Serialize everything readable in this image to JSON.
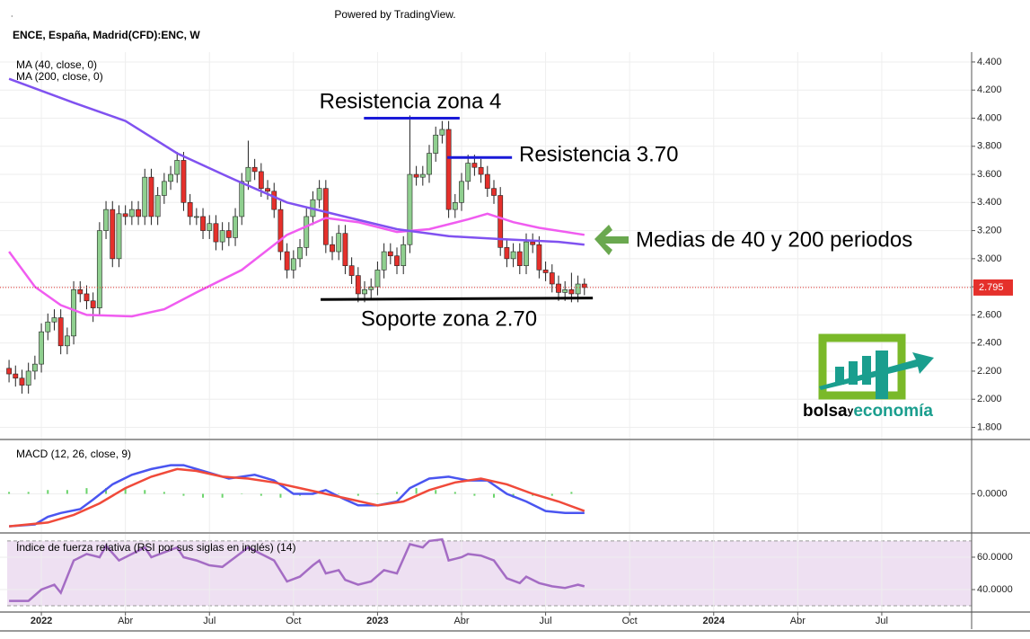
{
  "header": {
    "dot": ".",
    "attribution": "Powered by TradingView.",
    "title": "ENCE, España, Madrid(CFD):ENC, W"
  },
  "logo": {
    "part1": "bolsa",
    "part2": "y",
    "part3": "economía"
  },
  "chart_data": [
    {
      "type": "candlestick",
      "xlim": [
        -1.4,
        148.9
      ],
      "ylim": [
        1.72,
        4.47
      ],
      "yticks": [
        {
          "value": 1.8,
          "label": "1.800"
        },
        {
          "value": 2.0,
          "label": "2.000"
        },
        {
          "value": 2.2,
          "label": "2.200"
        },
        {
          "value": 2.4,
          "label": "2.400"
        },
        {
          "value": 2.6,
          "label": "2.600"
        },
        {
          "value": 2.8,
          "label": "2.800"
        },
        {
          "value": 3.0,
          "label": "3.000"
        },
        {
          "value": 3.2,
          "label": "3.200"
        },
        {
          "value": 3.4,
          "label": "3.400"
        },
        {
          "value": 3.6,
          "label": "3.600"
        },
        {
          "value": 3.8,
          "label": "3.800"
        },
        {
          "value": 4.0,
          "label": "4.000"
        },
        {
          "value": 4.2,
          "label": "4.200"
        },
        {
          "value": 4.4,
          "label": "4.400"
        }
      ],
      "up_color": "#8fcf8f",
      "down_color": "#e5302b",
      "last_color": "#e5302b",
      "x": [
        0,
        1,
        2,
        3,
        4,
        5,
        6,
        7,
        8,
        9,
        10,
        11,
        12,
        13,
        14,
        15,
        16,
        17,
        18,
        19,
        20,
        21,
        22,
        23,
        24,
        25,
        26,
        27,
        28,
        29,
        30,
        31,
        32,
        33,
        34,
        35,
        36,
        37,
        38,
        39,
        40,
        41,
        42,
        43,
        44,
        45,
        46,
        47,
        48,
        49,
        50,
        51,
        52,
        53,
        54,
        55,
        56,
        57,
        58,
        59,
        60,
        61,
        62,
        63,
        64,
        65,
        66,
        67,
        68,
        69,
        70,
        71,
        72,
        73,
        74,
        75,
        76,
        77,
        78,
        79,
        80,
        81,
        82,
        83,
        84,
        85,
        86,
        87,
        88,
        89
      ],
      "open": [
        2.22,
        2.18,
        2.15,
        2.1,
        2.2,
        2.25,
        2.48,
        2.55,
        2.58,
        2.38,
        2.45,
        2.78,
        2.75,
        2.7,
        2.65,
        3.2,
        3.35,
        3.0,
        3.32,
        3.3,
        3.35,
        3.3,
        3.58,
        3.3,
        3.45,
        3.55,
        3.6,
        3.7,
        3.4,
        3.3,
        3.3,
        3.2,
        3.25,
        3.12,
        3.2,
        3.15,
        3.3,
        3.55,
        3.65,
        3.62,
        3.5,
        3.48,
        3.35,
        3.05,
        2.92,
        3.0,
        3.08,
        3.3,
        3.42,
        3.5,
        3.1,
        3.05,
        3.18,
        2.95,
        2.88,
        2.75,
        2.78,
        2.8,
        2.92,
        3.05,
        3.02,
        2.95,
        3.1,
        3.6,
        3.58,
        3.6,
        3.75,
        3.88,
        3.92,
        3.35,
        3.4,
        3.55,
        3.68,
        3.65,
        3.6,
        3.5,
        3.45,
        3.08,
        3.0,
        3.05,
        2.95,
        3.12,
        3.1,
        2.92,
        2.9,
        2.82,
        2.76,
        2.78,
        2.75,
        2.82
      ],
      "high": [
        2.28,
        2.24,
        2.21,
        2.26,
        2.31,
        2.54,
        2.61,
        2.64,
        2.64,
        2.51,
        2.84,
        2.84,
        2.81,
        2.76,
        3.26,
        3.41,
        3.41,
        3.38,
        3.38,
        3.41,
        3.41,
        3.64,
        3.64,
        3.51,
        3.61,
        3.66,
        3.76,
        3.76,
        3.46,
        3.36,
        3.36,
        3.31,
        3.31,
        3.26,
        3.26,
        3.36,
        3.61,
        3.84,
        3.71,
        3.68,
        3.56,
        3.54,
        3.41,
        3.11,
        3.06,
        3.14,
        3.36,
        3.48,
        3.56,
        3.56,
        3.16,
        3.24,
        3.24,
        3.01,
        2.94,
        2.84,
        2.86,
        2.98,
        3.11,
        3.11,
        3.08,
        3.16,
        4.02,
        3.66,
        3.66,
        3.81,
        3.94,
        3.98,
        3.98,
        3.46,
        3.61,
        3.74,
        3.74,
        3.71,
        3.66,
        3.56,
        3.51,
        3.14,
        3.11,
        3.11,
        3.18,
        3.18,
        3.16,
        2.98,
        2.96,
        2.88,
        2.84,
        2.9,
        2.88,
        2.86
      ],
      "low": [
        2.12,
        2.09,
        2.04,
        2.04,
        2.14,
        2.19,
        2.42,
        2.49,
        2.32,
        2.32,
        2.39,
        2.69,
        2.64,
        2.55,
        2.59,
        3.14,
        2.94,
        2.94,
        3.24,
        3.24,
        3.24,
        3.24,
        3.24,
        3.24,
        3.39,
        3.49,
        3.54,
        3.34,
        3.24,
        3.24,
        3.14,
        3.14,
        3.06,
        3.06,
        3.09,
        3.09,
        3.24,
        3.49,
        3.56,
        3.44,
        3.42,
        3.29,
        2.99,
        2.86,
        2.86,
        2.94,
        3.02,
        3.24,
        3.36,
        3.04,
        2.99,
        2.99,
        2.89,
        2.82,
        2.69,
        2.69,
        2.72,
        2.74,
        2.86,
        2.96,
        2.89,
        2.89,
        3.04,
        3.52,
        3.52,
        3.54,
        3.69,
        3.82,
        3.29,
        3.29,
        3.34,
        3.49,
        3.59,
        3.54,
        3.44,
        3.39,
        3.02,
        2.94,
        2.94,
        2.89,
        2.89,
        3.04,
        2.86,
        2.84,
        2.76,
        2.7,
        2.7,
        2.69,
        2.69,
        2.74
      ],
      "close": [
        2.18,
        2.15,
        2.1,
        2.2,
        2.25,
        2.48,
        2.55,
        2.58,
        2.38,
        2.45,
        2.78,
        2.75,
        2.7,
        2.65,
        3.2,
        3.35,
        3.0,
        3.32,
        3.3,
        3.35,
        3.3,
        3.58,
        3.3,
        3.45,
        3.55,
        3.6,
        3.7,
        3.4,
        3.3,
        3.3,
        3.2,
        3.25,
        3.12,
        3.2,
        3.15,
        3.3,
        3.55,
        3.65,
        3.62,
        3.5,
        3.48,
        3.35,
        3.05,
        2.92,
        3.0,
        3.08,
        3.3,
        3.42,
        3.5,
        3.1,
        3.05,
        3.18,
        2.95,
        2.88,
        2.75,
        2.78,
        2.8,
        2.92,
        3.05,
        3.02,
        2.95,
        3.1,
        3.6,
        3.58,
        3.6,
        3.75,
        3.88,
        3.92,
        3.35,
        3.4,
        3.55,
        3.68,
        3.65,
        3.6,
        3.5,
        3.45,
        3.08,
        3.0,
        3.05,
        2.95,
        3.12,
        3.1,
        2.92,
        2.9,
        2.82,
        2.76,
        2.78,
        2.75,
        2.82,
        2.795
      ],
      "series": [
        {
          "name": "MA (40, close, 0)",
          "color": "#f05cf0",
          "x": [
            0,
            4,
            8,
            12,
            19,
            24,
            29,
            36,
            43,
            49,
            54,
            60,
            65,
            71,
            74,
            78,
            82,
            89
          ],
          "values": [
            3.05,
            2.8,
            2.67,
            2.6,
            2.59,
            2.64,
            2.76,
            2.92,
            3.17,
            3.29,
            3.26,
            3.19,
            3.21,
            3.28,
            3.32,
            3.26,
            3.22,
            3.17
          ]
        },
        {
          "name": "MA (200, close, 0)",
          "color": "#8052f0",
          "x": [
            0,
            10,
            18,
            26,
            35,
            43,
            51,
            60,
            68,
            76,
            85,
            89
          ],
          "values": [
            4.28,
            4.11,
            3.98,
            3.75,
            3.56,
            3.4,
            3.31,
            3.21,
            3.16,
            3.14,
            3.12,
            3.1
          ]
        }
      ],
      "annotations": [
        {
          "text": "Resistencia zona 4",
          "color": "#1a1ad8",
          "x": [
            54.9,
            69.7
          ],
          "y": [
            4.0,
            4.0
          ]
        },
        {
          "text": "Resistencia 3.70",
          "color": "#1a1ad8",
          "x": [
            67.8,
            77.8
          ],
          "y": [
            3.72,
            3.72
          ]
        },
        {
          "text": "Soporte zona 2.70",
          "color": "#000000",
          "x": [
            48.2,
            90.3
          ],
          "y": [
            2.71,
            2.72
          ]
        },
        {
          "text": "Medias de 40 y 200 periodos",
          "color": "#6a7a88"
        }
      ]
    },
    {
      "type": "line",
      "title": "MACD (12, 26, close, 9)",
      "xlim": [
        -1.4,
        148.9
      ],
      "ylim": [
        -0.2,
        0.28
      ],
      "yticks": [
        {
          "value": 0,
          "label": "0.0000"
        }
      ],
      "series": [
        {
          "color": "#4a55f0",
          "x": [
            0,
            4,
            6,
            8,
            11,
            13,
            16,
            19,
            22,
            25,
            27,
            30,
            34,
            38,
            41,
            44,
            47,
            49,
            52,
            54,
            57,
            60,
            62,
            65,
            68,
            71,
            74,
            77,
            80,
            83,
            86,
            89
          ],
          "values": [
            -0.17,
            -0.16,
            -0.12,
            -0.1,
            -0.08,
            -0.03,
            0.05,
            0.1,
            0.13,
            0.15,
            0.15,
            0.12,
            0.08,
            0.1,
            0.07,
            0.0,
            0.0,
            0.02,
            -0.03,
            -0.06,
            -0.06,
            -0.04,
            0.03,
            0.08,
            0.09,
            0.07,
            0.07,
            0.0,
            -0.04,
            -0.09,
            -0.1,
            -0.1
          ]
        },
        {
          "color": "#f04a3a",
          "x": [
            0,
            6,
            10,
            14,
            18,
            22,
            26,
            29,
            33,
            37,
            41,
            45,
            49,
            53,
            57,
            61,
            65,
            69,
            73,
            77,
            81,
            85,
            89
          ],
          "values": [
            -0.17,
            -0.15,
            -0.11,
            -0.05,
            0.03,
            0.09,
            0.13,
            0.12,
            0.09,
            0.08,
            0.06,
            0.03,
            0.0,
            -0.03,
            -0.06,
            -0.04,
            0.02,
            0.06,
            0.08,
            0.05,
            0.0,
            -0.04,
            -0.09
          ]
        }
      ],
      "histogram": {
        "color": "#6ad46a",
        "x": [
          0,
          3,
          6,
          9,
          12,
          15,
          18,
          21,
          24,
          27,
          30,
          33,
          36,
          39,
          42,
          45,
          48,
          51,
          54,
          57,
          60,
          63,
          66,
          69,
          72,
          75,
          78,
          81,
          84,
          87
        ],
        "values": [
          0.01,
          0.01,
          0.02,
          0.02,
          0.03,
          0.03,
          0.03,
          0.02,
          0.01,
          -0.01,
          -0.02,
          -0.02,
          0.0,
          -0.01,
          -0.02,
          -0.01,
          0.01,
          0.0,
          -0.01,
          0.0,
          0.01,
          0.03,
          0.02,
          0.01,
          -0.01,
          -0.02,
          -0.02,
          -0.01,
          -0.01,
          0.01
        ]
      }
    },
    {
      "type": "line",
      "title": "Índice de fuerza relativa (RSI por sus siglas en inglés) (14)",
      "xlim": [
        -1.4,
        148.9
      ],
      "ylim": [
        26.7,
        74.4
      ],
      "yticks": [
        {
          "value": 40,
          "label": "40.0000"
        },
        {
          "value": 60,
          "label": "60.0000"
        }
      ],
      "band": [
        30,
        70
      ],
      "band_color": "#eee0f2",
      "xticks": [
        {
          "value": 5,
          "label": "2022"
        },
        {
          "value": 18,
          "label": "Abr"
        },
        {
          "value": 31,
          "label": "Jul"
        },
        {
          "value": 44,
          "label": "Oct"
        },
        {
          "value": 57,
          "label": "2023"
        },
        {
          "value": 70,
          "label": "Abr"
        },
        {
          "value": 83,
          "label": "Jul"
        },
        {
          "value": 96,
          "label": "Oct"
        },
        {
          "value": 109,
          "label": "2024"
        },
        {
          "value": 122,
          "label": "Abr"
        },
        {
          "value": 135,
          "label": "Jul"
        }
      ],
      "series": [
        {
          "color": "#a46cc4",
          "x": [
            0,
            3,
            5,
            7,
            8,
            10,
            12,
            14,
            15,
            17,
            19,
            21,
            22,
            24,
            26,
            27,
            29,
            31,
            33,
            35,
            37,
            39,
            41,
            43,
            45,
            47,
            48,
            49,
            51,
            52,
            54,
            56,
            58,
            60,
            62,
            64,
            65,
            67,
            68,
            70,
            71,
            73,
            75,
            77,
            79,
            80,
            82,
            84,
            86,
            88,
            89
          ],
          "values": [
            33,
            33,
            40,
            43,
            38,
            58,
            62,
            60,
            67,
            58,
            62,
            66,
            60,
            63,
            66,
            60,
            58,
            55,
            54,
            60,
            66,
            62,
            58,
            45,
            48,
            55,
            58,
            50,
            52,
            46,
            43,
            45,
            52,
            50,
            68,
            66,
            70,
            71,
            58,
            60,
            62,
            61,
            58,
            47,
            44,
            48,
            44,
            42,
            41,
            43,
            42
          ]
        }
      ]
    }
  ]
}
